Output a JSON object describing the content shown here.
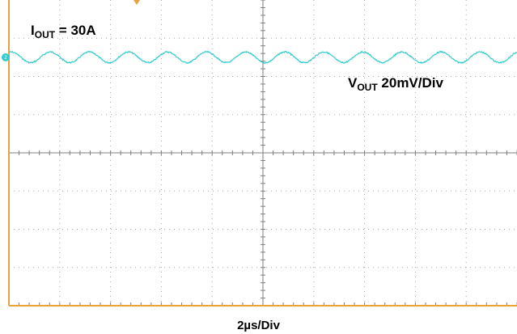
{
  "chart_data": {
    "type": "line",
    "title": "",
    "xlabel": "2µs/Div",
    "ylabel": "",
    "grid": true,
    "x_divisions": 10,
    "y_divisions": 8,
    "annotations": {
      "iout": {
        "main": "I",
        "sub": "OUT",
        "rest": " = 30A"
      },
      "vout": {
        "main": "V",
        "sub": "OUT",
        "rest": " 20mV/Div"
      }
    },
    "channel_marker": "2",
    "series": [
      {
        "color": "#33cccc",
        "x_divisions_span": [
          0,
          10
        ],
        "baseline_div": 1.5,
        "ripple_periods": 13,
        "ripple_pp_div": 0.28
      }
    ],
    "colors": {
      "frame": "#e8a33c",
      "grid": "#7f7f7f",
      "trace": "#33cccc",
      "background": "#ffffff"
    }
  }
}
